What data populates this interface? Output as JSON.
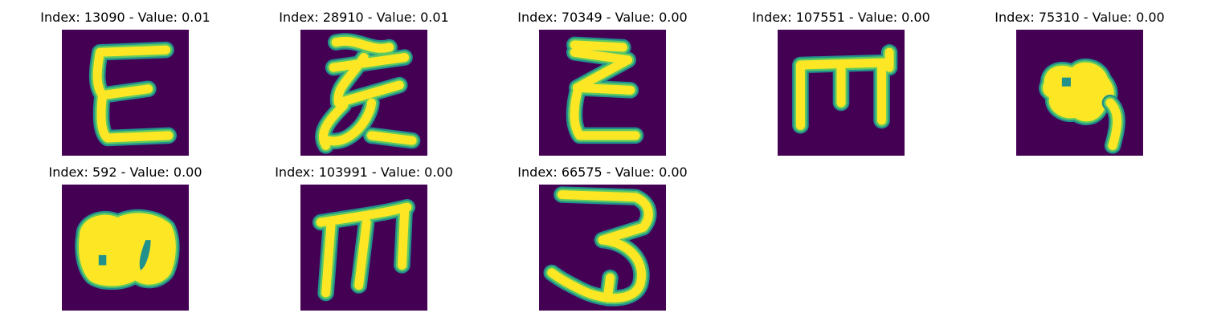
{
  "colors": {
    "background": "#440154",
    "stroke_core": "#fde725",
    "stroke_mid": "#5ec962",
    "stroke_edge": "#21918c"
  },
  "panels": [
    {
      "title": "Index: 13090 - Value: 0.01",
      "glyph": "E-upright"
    },
    {
      "title": "Index: 28910 - Value: 0.01",
      "glyph": "E-cursive"
    },
    {
      "title": "Index: 70349 - Value: 0.00",
      "glyph": "E-zigzag"
    },
    {
      "title": "Index: 107551 - Value: 0.00",
      "glyph": "m-squared"
    },
    {
      "title": "Index: 75310 - Value: 0.00",
      "glyph": "blob-with-tail"
    },
    {
      "title": "Index: 592 - Value: 0.00",
      "glyph": "blob-double"
    },
    {
      "title": "Index: 103991 - Value: 0.00",
      "glyph": "m-slanted"
    },
    {
      "title": "Index: 66575 - Value: 0.00",
      "glyph": "three"
    }
  ]
}
